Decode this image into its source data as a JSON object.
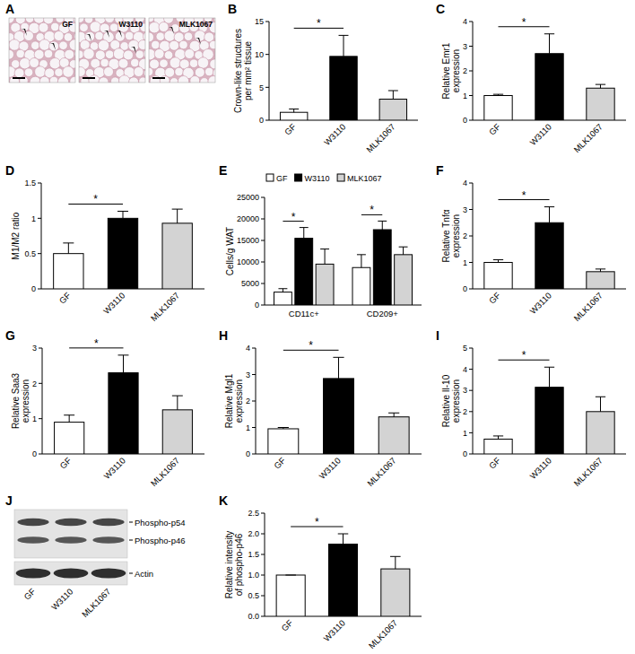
{
  "chart_data": [
    {
      "type": "bar",
      "title": "B",
      "y_label": "Crown-like structures per mm² tissue",
      "categories": [
        "GF",
        "W3110",
        "MLK1067"
      ],
      "values": [
        1.2,
        9.7,
        3.2
      ],
      "errors": [
        0.5,
        3.2,
        1.3
      ],
      "colors": [
        "#ffffff",
        "#000000",
        "#d3d3d3"
      ],
      "ylim": [
        0,
        15
      ],
      "yticks": [
        0,
        5,
        10,
        15
      ],
      "grid": false,
      "significance": [
        {
          "label": "*",
          "between": [
            0,
            1
          ]
        }
      ]
    },
    {
      "type": "bar",
      "title": "C",
      "y_label": "Relative Emr1 expression",
      "categories": [
        "GF",
        "W3110",
        "MLK1067"
      ],
      "values": [
        1.0,
        2.7,
        1.3
      ],
      "errors": [
        0.05,
        0.8,
        0.15
      ],
      "colors": [
        "#ffffff",
        "#000000",
        "#d3d3d3"
      ],
      "ylim": [
        0,
        4
      ],
      "yticks": [
        0,
        1,
        2,
        3,
        4
      ],
      "grid": false,
      "significance": [
        {
          "label": "*",
          "between": [
            0,
            1
          ]
        }
      ]
    },
    {
      "type": "bar",
      "title": "D",
      "y_label": "M1/M2 ratio",
      "categories": [
        "GF",
        "W3110",
        "MLK1067"
      ],
      "values": [
        0.5,
        1.0,
        0.93
      ],
      "errors": [
        0.15,
        0.1,
        0.2
      ],
      "colors": [
        "#ffffff",
        "#000000",
        "#d3d3d3"
      ],
      "ylim": [
        0,
        1.5
      ],
      "yticks": [
        0,
        0.5,
        1,
        1.5
      ],
      "grid": false,
      "significance": [
        {
          "label": "*",
          "between": [
            0,
            1
          ]
        }
      ]
    },
    {
      "type": "bar",
      "title": "E",
      "y_label": "Cells/g WAT",
      "categories": [
        "CD11c+",
        "CD209+"
      ],
      "series": [
        {
          "name": "GF",
          "color": "#ffffff",
          "values": [
            3000,
            8700
          ],
          "errors": [
            800,
            3000
          ]
        },
        {
          "name": "W3110",
          "color": "#000000",
          "values": [
            15500,
            17500
          ],
          "errors": [
            2500,
            2000
          ]
        },
        {
          "name": "MLK1067",
          "color": "#d3d3d3",
          "values": [
            9500,
            11700
          ],
          "errors": [
            3500,
            1800
          ]
        }
      ],
      "legend": "top",
      "ylim": [
        0,
        25000
      ],
      "yticks": [
        0,
        5000,
        10000,
        15000,
        20000,
        25000
      ],
      "grid": false,
      "significance": [
        {
          "label": "*",
          "category": 0,
          "between": [
            0,
            1
          ]
        },
        {
          "label": "*",
          "category": 1,
          "between": [
            0,
            1
          ]
        }
      ]
    },
    {
      "type": "bar",
      "title": "F",
      "y_label": "Relative Tnfα expression",
      "categories": [
        "GF",
        "W3110",
        "MLK1067"
      ],
      "values": [
        1.0,
        2.5,
        0.65
      ],
      "errors": [
        0.1,
        0.6,
        0.1
      ],
      "colors": [
        "#ffffff",
        "#000000",
        "#d3d3d3"
      ],
      "ylim": [
        0,
        4
      ],
      "yticks": [
        0,
        1,
        2,
        3,
        4
      ],
      "grid": false,
      "significance": [
        {
          "label": "*",
          "between": [
            0,
            1
          ]
        }
      ]
    },
    {
      "type": "bar",
      "title": "G",
      "y_label": "Relative Saa3 expression",
      "categories": [
        "GF",
        "W3110",
        "MLK1067"
      ],
      "values": [
        0.9,
        2.3,
        1.25
      ],
      "errors": [
        0.2,
        0.5,
        0.4
      ],
      "colors": [
        "#ffffff",
        "#000000",
        "#d3d3d3"
      ],
      "ylim": [
        0,
        3
      ],
      "yticks": [
        0,
        1,
        2,
        3
      ],
      "grid": false,
      "significance": [
        {
          "label": "*",
          "between": [
            0,
            1
          ]
        }
      ]
    },
    {
      "type": "bar",
      "title": "H",
      "y_label": "Relative Mgl1 expression",
      "categories": [
        "GF",
        "W3110",
        "MLK1067"
      ],
      "values": [
        0.95,
        2.85,
        1.4
      ],
      "errors": [
        0.05,
        0.8,
        0.15
      ],
      "colors": [
        "#ffffff",
        "#000000",
        "#d3d3d3"
      ],
      "ylim": [
        0,
        4
      ],
      "yticks": [
        0,
        1,
        2,
        3,
        4
      ],
      "grid": false,
      "significance": [
        {
          "label": "*",
          "between": [
            0,
            1
          ]
        }
      ]
    },
    {
      "type": "bar",
      "title": "I",
      "y_label": "Relative Il-10 expression",
      "categories": [
        "GF",
        "W3110",
        "MLK1067"
      ],
      "values": [
        0.7,
        3.15,
        2.0
      ],
      "errors": [
        0.15,
        0.95,
        0.7
      ],
      "colors": [
        "#ffffff",
        "#000000",
        "#d3d3d3"
      ],
      "ylim": [
        0,
        5
      ],
      "yticks": [
        0,
        1,
        2,
        3,
        4,
        5
      ],
      "grid": false,
      "significance": [
        {
          "label": "*",
          "between": [
            0,
            1
          ]
        }
      ]
    },
    {
      "type": "bar",
      "title": "K",
      "y_label": "Relative intensity of phospho-p46",
      "categories": [
        "GF",
        "W3110",
        "MLK1067"
      ],
      "values": [
        1.0,
        1.75,
        1.15
      ],
      "errors": [
        0,
        0.25,
        0.3
      ],
      "colors": [
        "#ffffff",
        "#000000",
        "#d3d3d3"
      ],
      "ylim": [
        0,
        2.5
      ],
      "yticks": [
        {
          "value": 0,
          "label": "0.0"
        },
        {
          "value": 0.5,
          "label": "0.5"
        },
        {
          "value": 1,
          "label": "1.0"
        },
        {
          "value": 1.5,
          "label": "1.5"
        },
        {
          "value": 2,
          "label": "2.0"
        },
        {
          "value": 2.5,
          "label": "2.5"
        }
      ],
      "grid": false,
      "significance": [
        {
          "label": "*",
          "between": [
            0,
            1
          ]
        }
      ]
    }
  ],
  "micrographs": {
    "title": "A",
    "labels": [
      "GF",
      "W3110",
      "MLK1067"
    ]
  },
  "blot": {
    "title": "J",
    "bands": [
      "Phospho-p54",
      "Phospho-p46"
    ],
    "loading_control": "Actin",
    "lanes": [
      "GF",
      "W3110",
      "MLK1067"
    ]
  }
}
